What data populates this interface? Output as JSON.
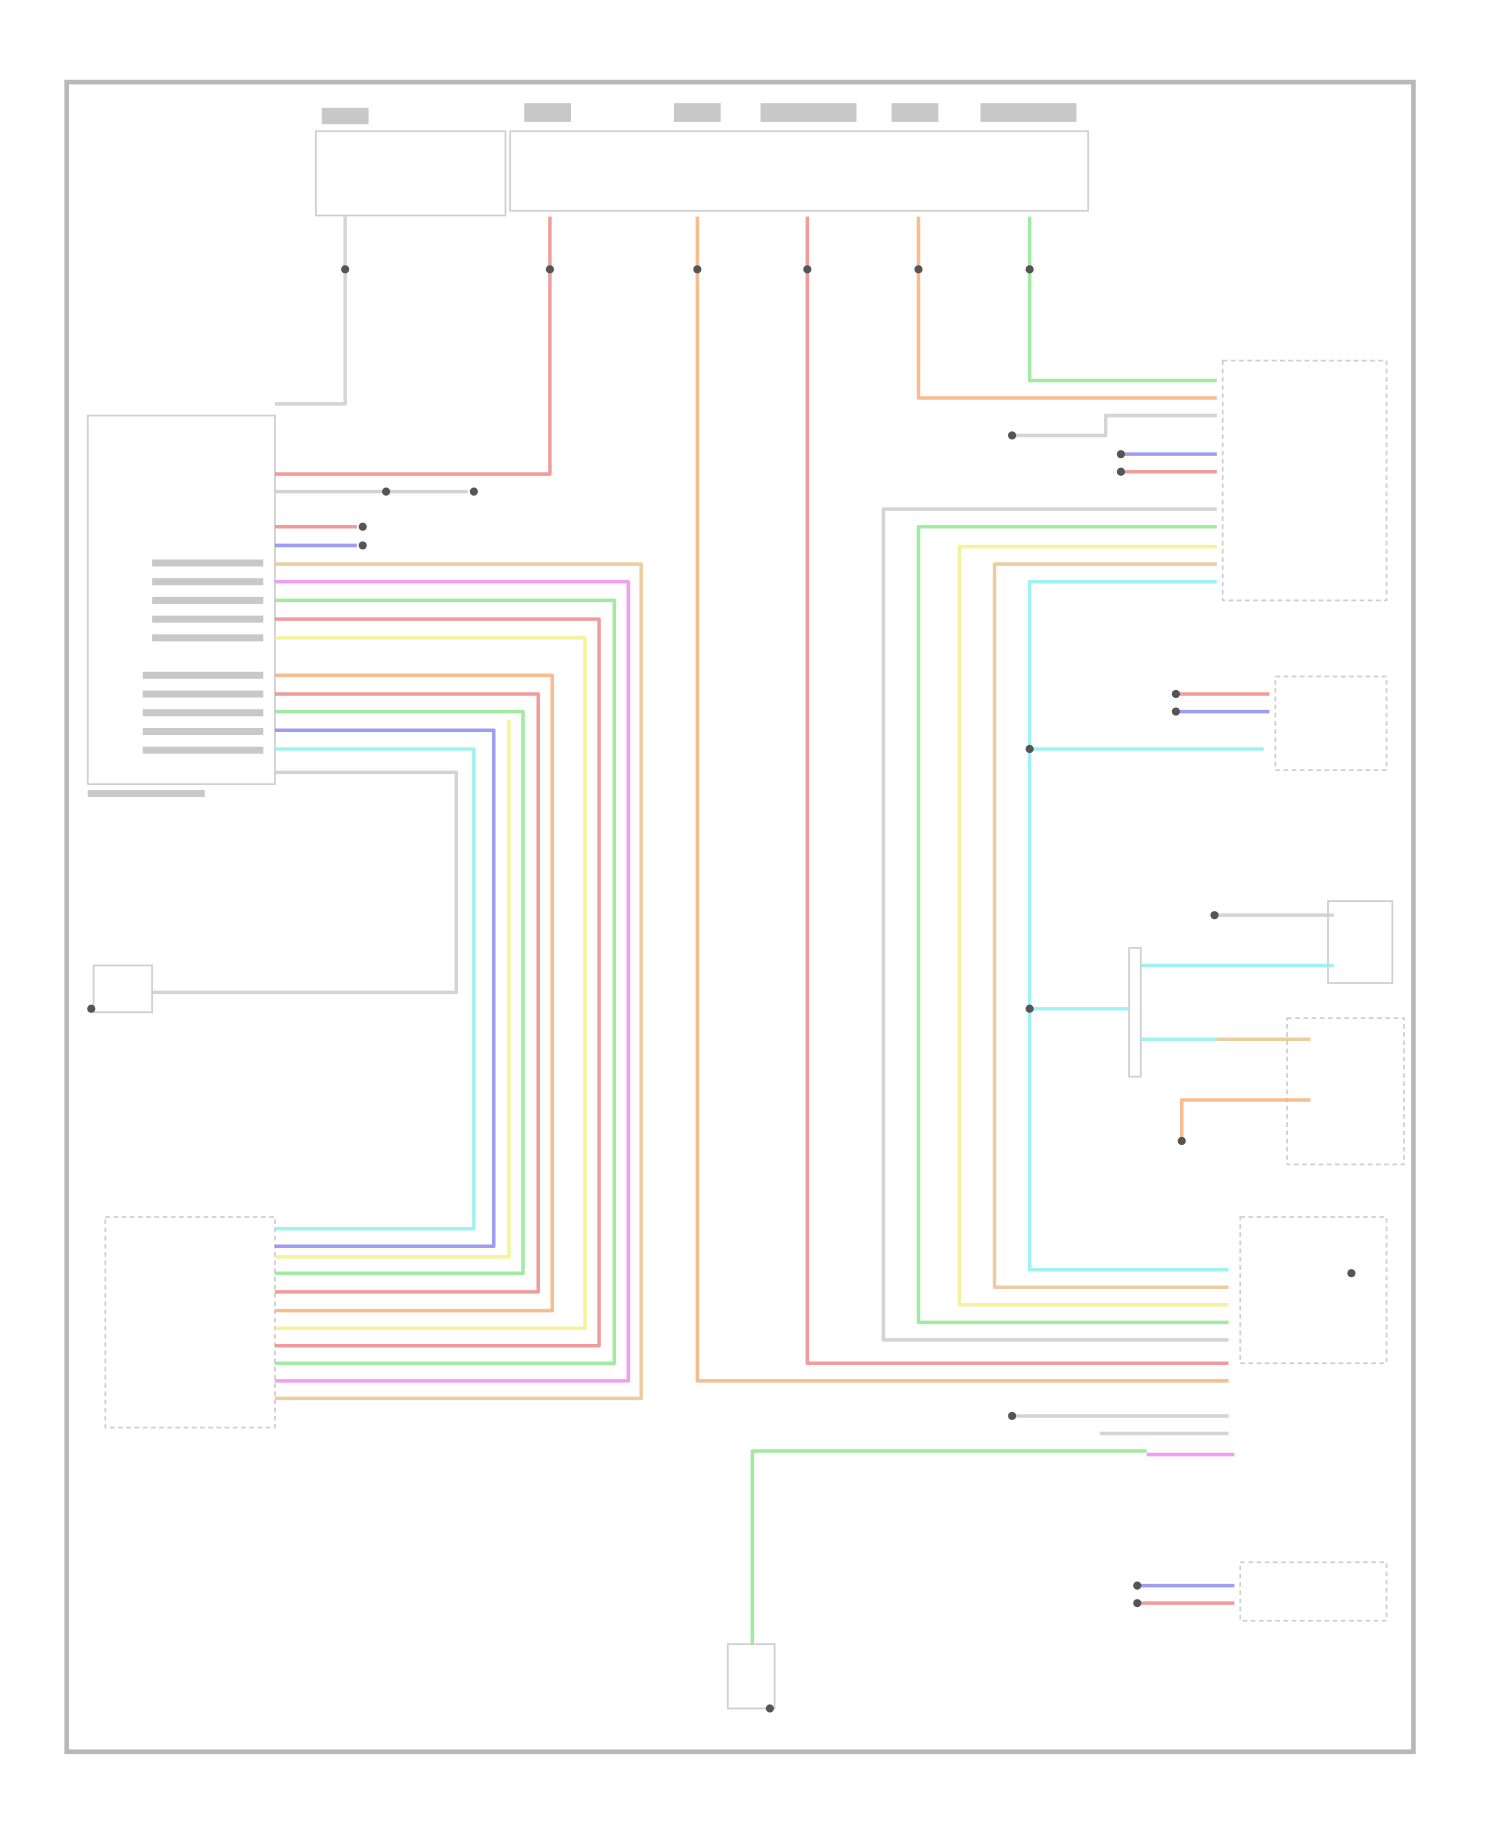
{
  "diagram": {
    "type": "wiring-diagram",
    "text_legible": false,
    "wire_colors": {
      "red": "#f08a8a",
      "orange": "#f7b27a",
      "green": "#8fe88f",
      "yellow": "#f5f08a",
      "tan": "#e8c48f",
      "magenta": "#ee8cee",
      "purple": "#8c8cf0",
      "cyan": "#8ff0f0",
      "gray": "#cccccc"
    },
    "components": [
      {
        "id": "fuse-block-top"
      },
      {
        "id": "left-control-module"
      },
      {
        "id": "bottom-left-module"
      },
      {
        "id": "left-switch"
      },
      {
        "id": "right-upper-module"
      },
      {
        "id": "right-middle-module"
      },
      {
        "id": "right-relay-1"
      },
      {
        "id": "right-relay-2"
      },
      {
        "id": "right-lower-module"
      },
      {
        "id": "bottom-switch"
      },
      {
        "id": "bottom-right-module"
      }
    ]
  }
}
